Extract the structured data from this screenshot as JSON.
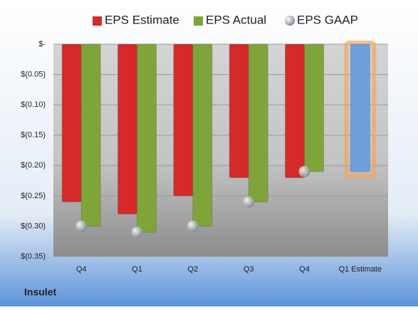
{
  "chart_data": {
    "type": "bar",
    "title": "Insulet",
    "categories": [
      "Q4",
      "Q1",
      "Q2",
      "Q3",
      "Q4",
      "Q1 Estimate"
    ],
    "series": [
      {
        "name": "EPS Estimate",
        "color": "#d42a2a",
        "values": [
          -0.26,
          -0.28,
          -0.25,
          -0.22,
          -0.22,
          -0.21
        ]
      },
      {
        "name": "EPS Actual",
        "color": "#7fa43a",
        "values": [
          -0.3,
          -0.31,
          -0.3,
          -0.26,
          -0.21,
          null
        ]
      },
      {
        "name": "EPS GAAP",
        "color": "#9aa3ad",
        "values": [
          -0.3,
          -0.31,
          -0.3,
          -0.26,
          -0.21,
          null
        ]
      }
    ],
    "forecast_color": "#6f9fdc",
    "ylim": [
      -0.35,
      0
    ],
    "yticks": [
      {
        "value": 0,
        "label": "$-"
      },
      {
        "value": -0.05,
        "label": "$(0.05)"
      },
      {
        "value": -0.1,
        "label": "$(0.10)"
      },
      {
        "value": -0.15,
        "label": "$(0.15)"
      },
      {
        "value": -0.2,
        "label": "$(0.20)"
      },
      {
        "value": -0.25,
        "label": "$(0.25)"
      },
      {
        "value": -0.3,
        "label": "$(0.30)"
      },
      {
        "value": -0.35,
        "label": "$(0.35)"
      }
    ],
    "grid": true,
    "legend": "top"
  }
}
